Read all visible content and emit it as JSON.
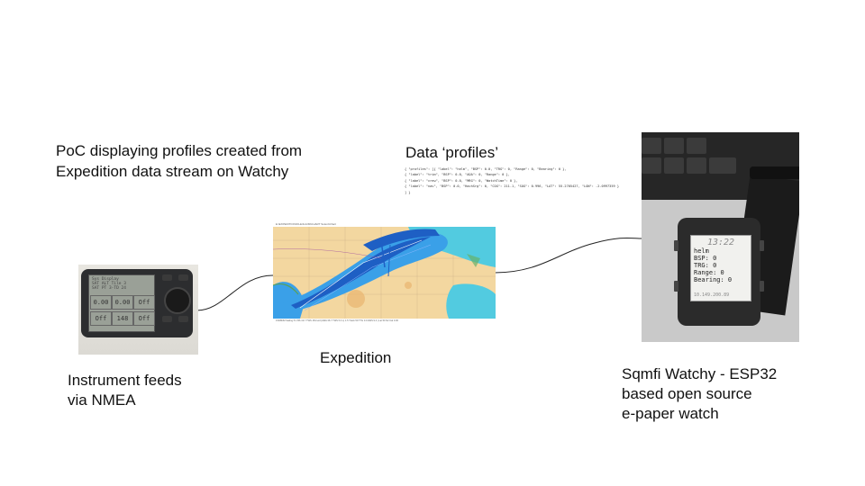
{
  "title": "PoC displaying profiles created from Expedition data stream on Watchy",
  "profiles_heading": "Data ‘profiles’",
  "profiles_json": "{ \"profiles\": [{ \"label\": \"helm\", \"BSP\": 0.0, \"TRG\": 0, \"Range\": 0, \"Bearing\": 0 },\n{ \"label\": \"trim\", \"BSP\": 0.0, \"AOA\": 0, \"Range\": 0 },\n{ \"label\": \"crew\", \"BSP\": 0.0, \"MRG\": 0, \"WatchTime\": 0 },\n{ \"label\": \"nav\", \"BSP\": 0.0, \"HachSrg\": 0, \"COG\": 211.1, \"SOG\": 0.996, \"LAT\": 55.2705427, \"LON\": -2.0997359 }\n] }",
  "instrument": {
    "label_line1": "Instrument feeds",
    "label_line2": "via NMEA",
    "screen_header": "Sys Display\nSAT ALT Tile 3\nSAT PT 3-TD 24",
    "cells": [
      "0.00",
      "0.00",
      "Off",
      "Off",
      "148",
      "Off"
    ]
  },
  "expedition": {
    "label": "Expedition",
    "topbar_text": "E:\\EXPEDITION\\FILE\\1HUM\\CHART Solent\\Chart",
    "statusbar_text": "150/8NM Sailing 5.1 BS 19.7 TWS 154 twd (AWA 36.7 TWS 5.3 L) 1.5 Track 50 TTG 0.0 AWS 9.4 | Lat 50 N2 Cal 0.06"
  },
  "watch": {
    "label_line1": "Sqmfi Watchy - ESP32",
    "label_line2": "based open source",
    "label_line3": "e-paper watch",
    "screen": {
      "time": "13:22",
      "profile": "helm",
      "bsp": "BSP: 0",
      "trg": "TRG: 0",
      "range": "Range: 0",
      "bearing": "Bearing: 0",
      "ip": "10.149.200.89"
    }
  },
  "colors": {
    "water_deep": "#1e5fc4",
    "water_mid": "#3aa0e8",
    "water_shallow": "#52cbe0",
    "land": "#f3d7a0",
    "connector": "#222222"
  }
}
